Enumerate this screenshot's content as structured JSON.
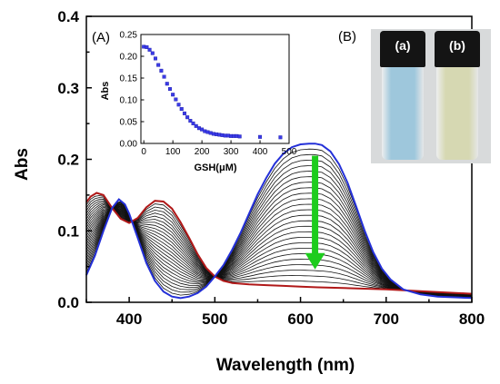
{
  "chart_data": [
    {
      "type": "line",
      "panel_label": "",
      "xlabel": "Wavelength (nm)",
      "ylabel": "Abs",
      "xlim": [
        350,
        800
      ],
      "ylim": [
        0.0,
        0.4
      ],
      "xticks": [
        "400",
        "500",
        "600",
        "700",
        "800"
      ],
      "yticks": [
        "0.0",
        "0.1",
        "0.2",
        "0.3",
        "0.4"
      ],
      "grid": false,
      "series": [
        {
          "name": "",
          "color": "#2430d8",
          "x": [
            350,
            360,
            370,
            380,
            388,
            395,
            400,
            410,
            420,
            430,
            440,
            450,
            460,
            470,
            480,
            490,
            500,
            510,
            520,
            530,
            540,
            550,
            560,
            570,
            580,
            590,
            600,
            610,
            617,
            625,
            635,
            645,
            655,
            665,
            675,
            685,
            695,
            705,
            720,
            740,
            760,
            780,
            800
          ],
          "y": [
            0.038,
            0.065,
            0.1,
            0.132,
            0.144,
            0.137,
            0.124,
            0.09,
            0.055,
            0.03,
            0.015,
            0.008,
            0.006,
            0.008,
            0.013,
            0.022,
            0.036,
            0.052,
            0.073,
            0.097,
            0.124,
            0.151,
            0.174,
            0.194,
            0.208,
            0.217,
            0.221,
            0.222,
            0.222,
            0.22,
            0.211,
            0.193,
            0.167,
            0.134,
            0.1,
            0.07,
            0.047,
            0.032,
            0.018,
            0.011,
            0.008,
            0.007,
            0.006
          ]
        },
        {
          "name": "",
          "color": "#b01818",
          "x": [
            350,
            355,
            362,
            370,
            380,
            390,
            400,
            410,
            420,
            430,
            440,
            450,
            460,
            470,
            480,
            490,
            500,
            510,
            520,
            540,
            560,
            580,
            600,
            620,
            650,
            700,
            750,
            800
          ],
          "y": [
            0.14,
            0.148,
            0.153,
            0.15,
            0.132,
            0.117,
            0.111,
            0.118,
            0.133,
            0.142,
            0.141,
            0.131,
            0.112,
            0.09,
            0.067,
            0.048,
            0.036,
            0.03,
            0.027,
            0.025,
            0.024,
            0.023,
            0.022,
            0.021,
            0.02,
            0.018,
            0.015,
            0.012
          ]
        }
      ],
      "annotation": "decrease in 617 nm band with added GSH"
    },
    {
      "type": "scatter",
      "panel_label": "(A)",
      "xlabel": "GSH(μM)",
      "ylabel": "Abs",
      "xlim": [
        -10,
        500
      ],
      "ylim": [
        0.0,
        0.25
      ],
      "xticks": [
        "0",
        "100",
        "200",
        "300",
        "400",
        "500"
      ],
      "yticks": [
        "0.00",
        "0.05",
        "0.10",
        "0.15",
        "0.20",
        "0.25"
      ],
      "series": [
        {
          "name": "",
          "color": "#3a3ae6",
          "x": [
            0,
            10,
            20,
            30,
            40,
            50,
            60,
            70,
            80,
            90,
            100,
            110,
            120,
            130,
            140,
            150,
            160,
            170,
            180,
            190,
            200,
            210,
            220,
            230,
            240,
            250,
            260,
            270,
            280,
            290,
            300,
            310,
            320,
            330,
            400,
            470
          ],
          "y": [
            0.222,
            0.221,
            0.215,
            0.207,
            0.195,
            0.18,
            0.167,
            0.153,
            0.137,
            0.125,
            0.112,
            0.101,
            0.089,
            0.079,
            0.069,
            0.06,
            0.052,
            0.046,
            0.04,
            0.035,
            0.032,
            0.028,
            0.026,
            0.024,
            0.022,
            0.021,
            0.02,
            0.019,
            0.018,
            0.018,
            0.017,
            0.017,
            0.017,
            0.016,
            0.015,
            0.014
          ]
        }
      ]
    }
  ],
  "photo": {
    "panel_label": "(B)",
    "vials": [
      {
        "label": "(a)",
        "color": "#9ec7dc"
      },
      {
        "label": "(b)",
        "color": "#d6d8b2"
      }
    ]
  }
}
